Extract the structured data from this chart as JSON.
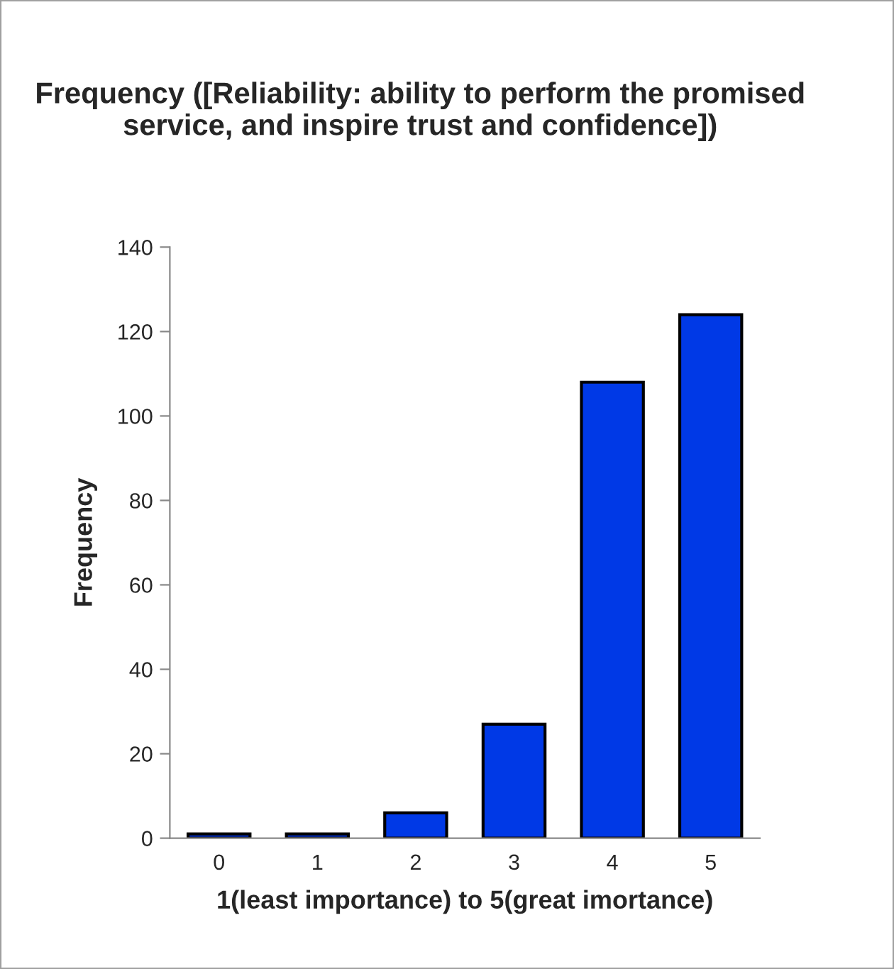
{
  "chart_data": {
    "type": "bar",
    "title": "Frequency ([Reliability: ability to perform the promised service, and inspire trust and confidence])",
    "xlabel": "1(least importance) to 5(great imortance)",
    "ylabel": "Frequency",
    "categories": [
      "0",
      "1",
      "2",
      "3",
      "4",
      "5"
    ],
    "values": [
      1,
      1,
      6,
      27,
      108,
      124
    ],
    "color": "#0039e6",
    "ylim": [
      0,
      140
    ],
    "yticks": [
      0,
      20,
      40,
      60,
      80,
      100,
      120,
      140
    ],
    "grid": false,
    "legend": false
  }
}
